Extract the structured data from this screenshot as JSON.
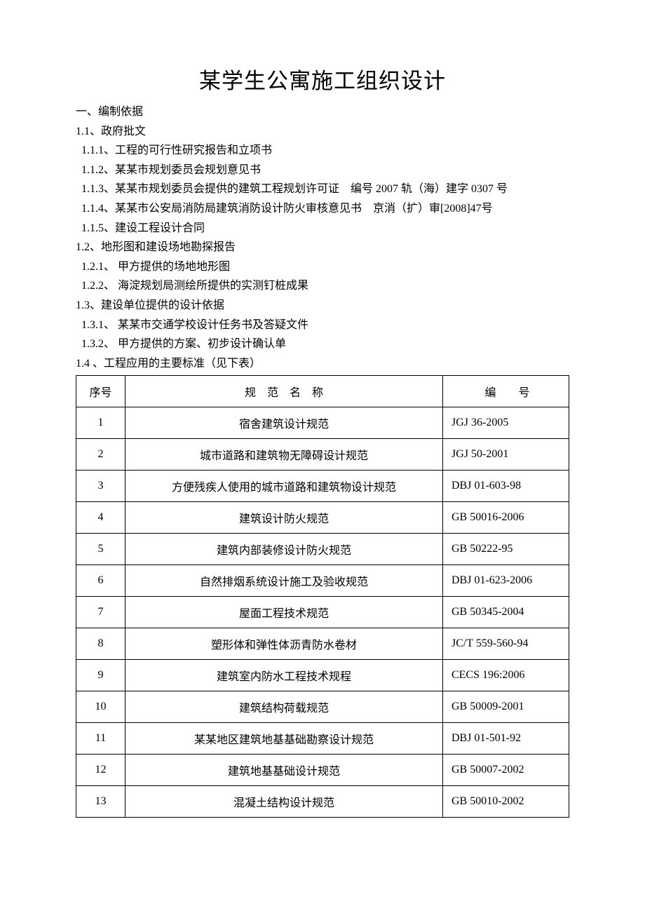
{
  "title": "某学生公寓施工组织设计",
  "sections": {
    "s1": "一、编制依据",
    "s1_1": "1.1、政府批文",
    "s1_1_1": "1.1.1、工程的可行性研究报告和立项书",
    "s1_1_2": "1.1.2、某某市规划委员会规划意见书",
    "s1_1_3": "1.1.3、某某市规划委员会提供的建筑工程规划许可证 编号 2007 轨（海）建字 0307 号",
    "s1_1_4": "1.1.4、某某市公安局消防局建筑消防设计防火审核意见书 京消（扩）审[2008]47号",
    "s1_1_5": "1.1.5、建设工程设计合同",
    "s1_2": "1.2、地形图和建设场地勘探报告",
    "s1_2_1": "1.2.1、 甲方提供的场地地形图",
    "s1_2_2": "1.2.2、 海淀规划局测绘所提供的实测钉桩成果",
    "s1_3": "1.3、建设单位提供的设计依据",
    "s1_3_1": "1.3.1、 某某市交通学校设计任务书及答疑文件",
    "s1_3_2": "1.3.2、 甲方提供的方案、初步设计确认单",
    "s1_4": "1.4 、工程应用的主要标准（见下表）"
  },
  "table": {
    "headers": {
      "seq": "序号",
      "name": "规 范 名 称",
      "code": "编  号"
    },
    "rows": [
      {
        "seq": "1",
        "name": "宿舍建筑设计规范",
        "code": "JGJ 36-2005"
      },
      {
        "seq": "2",
        "name": "城市道路和建筑物无障碍设计规范",
        "code": "JGJ 50-2001"
      },
      {
        "seq": "3",
        "name": "方便残疾人使用的城市道路和建筑物设计规范",
        "code": "DBJ 01-603-98"
      },
      {
        "seq": "4",
        "name": "建筑设计防火规范",
        "code": "GB 50016-2006"
      },
      {
        "seq": "5",
        "name": "建筑内部装修设计防火规范",
        "code": "GB 50222-95"
      },
      {
        "seq": "6",
        "name": "自然排烟系统设计施工及验收规范",
        "code": "DBJ 01-623-2006"
      },
      {
        "seq": "7",
        "name": "屋面工程技术规范",
        "code": "GB 50345-2004"
      },
      {
        "seq": "8",
        "name": "塑形体和弹性体沥青防水卷材",
        "code": "JC/T 559-560-94"
      },
      {
        "seq": "9",
        "name": "建筑室内防水工程技术规程",
        "code": "CECS 196:2006"
      },
      {
        "seq": "10",
        "name": "建筑结构荷载规范",
        "code": "GB 50009-2001"
      },
      {
        "seq": "11",
        "name": "某某地区建筑地基基础勘察设计规范",
        "code": "DBJ 01-501-92"
      },
      {
        "seq": "12",
        "name": "建筑地基基础设计规范",
        "code": "GB 50007-2002"
      },
      {
        "seq": "13",
        "name": "混凝土结构设计规范",
        "code": "GB 50010-2002"
      }
    ]
  }
}
